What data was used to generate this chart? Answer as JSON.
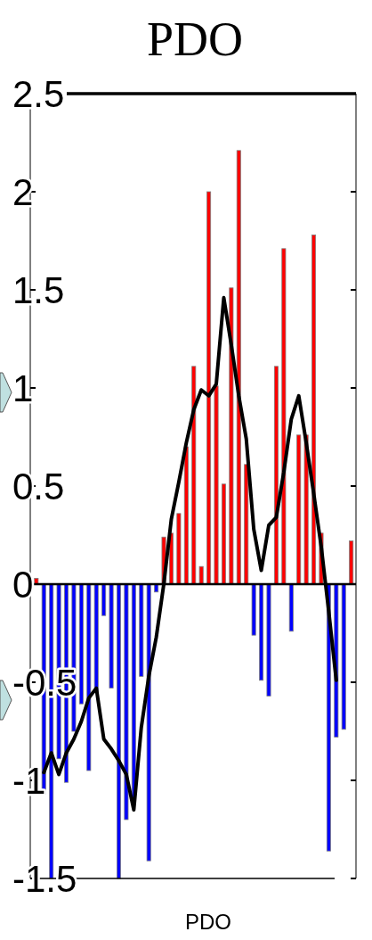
{
  "chart_data": {
    "type": "bar",
    "title": "PDO",
    "xlabel": "PDO",
    "categories": [
      null,
      null,
      null,
      null,
      null,
      null,
      null,
      null,
      null,
      null,
      null,
      null,
      null,
      null,
      null,
      null,
      null,
      null,
      null,
      null,
      null,
      null,
      null,
      null,
      null,
      null,
      null,
      null,
      null,
      null,
      null,
      null,
      null,
      null,
      null,
      null,
      null,
      null,
      null,
      null,
      null,
      null,
      null
    ],
    "ylim": [
      -1.5,
      2.5
    ],
    "yticks": [
      2.5,
      2,
      1.5,
      1,
      0.5,
      0,
      -0.5,
      -1,
      -1.5
    ],
    "series": [
      {
        "type": "bar",
        "colors": [
          "#ff0000",
          "#0000ff",
          "#0000ff",
          "#0000ff",
          "#0000ff",
          "#0000ff",
          "#0000ff",
          "#0000ff",
          "#0000ff",
          "#0000ff",
          "#0000ff",
          "#0000ff",
          "#0000ff",
          "#0000ff",
          "#0000ff",
          "#0000ff",
          "#0000ff",
          "#ff0000",
          "#ff0000",
          "#ff0000",
          "#ff0000",
          "#ff0000",
          "#ff0000",
          "#ff0000",
          "#ff0000",
          "#ff0000",
          "#ff0000",
          "#ff0000",
          "#ff0000",
          "#0000ff",
          "#0000ff",
          "#0000ff",
          "#ff0000",
          "#ff0000",
          "#0000ff",
          "#ff0000",
          "#ff0000",
          "#ff0000",
          "#ff0000",
          "#0000ff",
          "#0000ff",
          "#0000ff",
          "#ff0000"
        ],
        "values": [
          0.03,
          -1.07,
          -1.5,
          -0.89,
          -1.01,
          -0.75,
          -0.61,
          -0.95,
          -0.55,
          -0.16,
          -0.53,
          -1.5,
          -1.2,
          -1.1,
          -0.47,
          -1.41,
          -0.04,
          0.24,
          0.26,
          0.36,
          0.7,
          1.11,
          0.09,
          2.0,
          1.01,
          0.51,
          1.51,
          2.21,
          0.61,
          -0.26,
          -0.49,
          -0.57,
          1.11,
          1.71,
          -0.24,
          0.76,
          0.76,
          1.78,
          0.26,
          -1.36,
          -0.78,
          -0.74,
          0.22
        ]
      },
      {
        "type": "line",
        "color": "#000000",
        "values": [
          null,
          -0.96,
          -0.86,
          -0.97,
          -0.86,
          -0.79,
          -0.7,
          -0.58,
          -0.53,
          -0.79,
          -0.84,
          -0.9,
          -0.97,
          -1.15,
          -0.73,
          -0.47,
          -0.27,
          0.0,
          0.33,
          0.52,
          0.72,
          0.89,
          0.99,
          0.96,
          1.02,
          1.46,
          1.22,
          0.96,
          0.74,
          0.28,
          0.07,
          0.3,
          0.34,
          0.57,
          0.84,
          0.96,
          0.72,
          0.46,
          0.19,
          -0.14,
          -0.49,
          null,
          null
        ]
      }
    ]
  }
}
